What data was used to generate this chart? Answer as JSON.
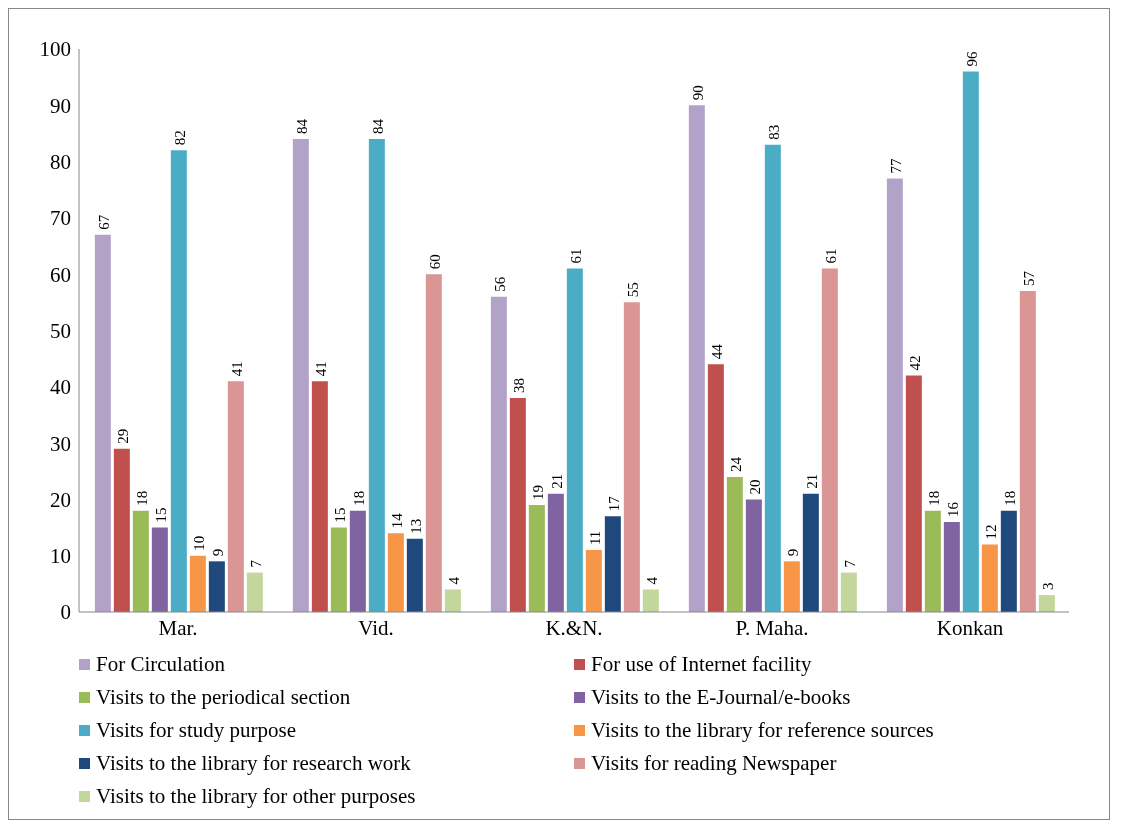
{
  "chart_data": {
    "type": "bar",
    "categories": [
      "Mar.",
      "Vid.",
      "K.&N.",
      "P. Maha.",
      "Konkan"
    ],
    "series": [
      {
        "name": "For Circulation",
        "color": "#b3a2c7",
        "values": [
          67,
          84,
          56,
          90,
          77
        ]
      },
      {
        "name": "For use of Internet facility",
        "color": "#c0504d",
        "values": [
          29,
          41,
          38,
          44,
          42
        ]
      },
      {
        "name": "Visits to the periodical section",
        "color": "#9bbb59",
        "values": [
          18,
          15,
          19,
          24,
          18
        ]
      },
      {
        "name": "Visits to the E-Journal/e-books",
        "color": "#8064a2",
        "values": [
          15,
          18,
          21,
          20,
          16
        ]
      },
      {
        "name": "Visits for study purpose",
        "color": "#4bacc6",
        "values": [
          82,
          84,
          61,
          83,
          96
        ]
      },
      {
        "name": "Visits to the library for reference sources",
        "color": "#f79646",
        "values": [
          10,
          14,
          11,
          9,
          12
        ]
      },
      {
        "name": "Visits to the library for research work",
        "color": "#1f497d",
        "values": [
          9,
          13,
          17,
          21,
          18
        ]
      },
      {
        "name": "Visits for reading Newspaper",
        "color": "#d99694",
        "values": [
          41,
          60,
          55,
          61,
          57
        ]
      },
      {
        "name": "Visits to the library for other purposes",
        "color": "#c3d69b",
        "values": [
          7,
          4,
          4,
          7,
          3
        ]
      }
    ],
    "ylim": [
      0,
      100
    ],
    "yticks": [
      0,
      10,
      20,
      30,
      40,
      50,
      60,
      70,
      80,
      90,
      100
    ],
    "grid": false,
    "legend": "bottom",
    "data_labels": true
  }
}
